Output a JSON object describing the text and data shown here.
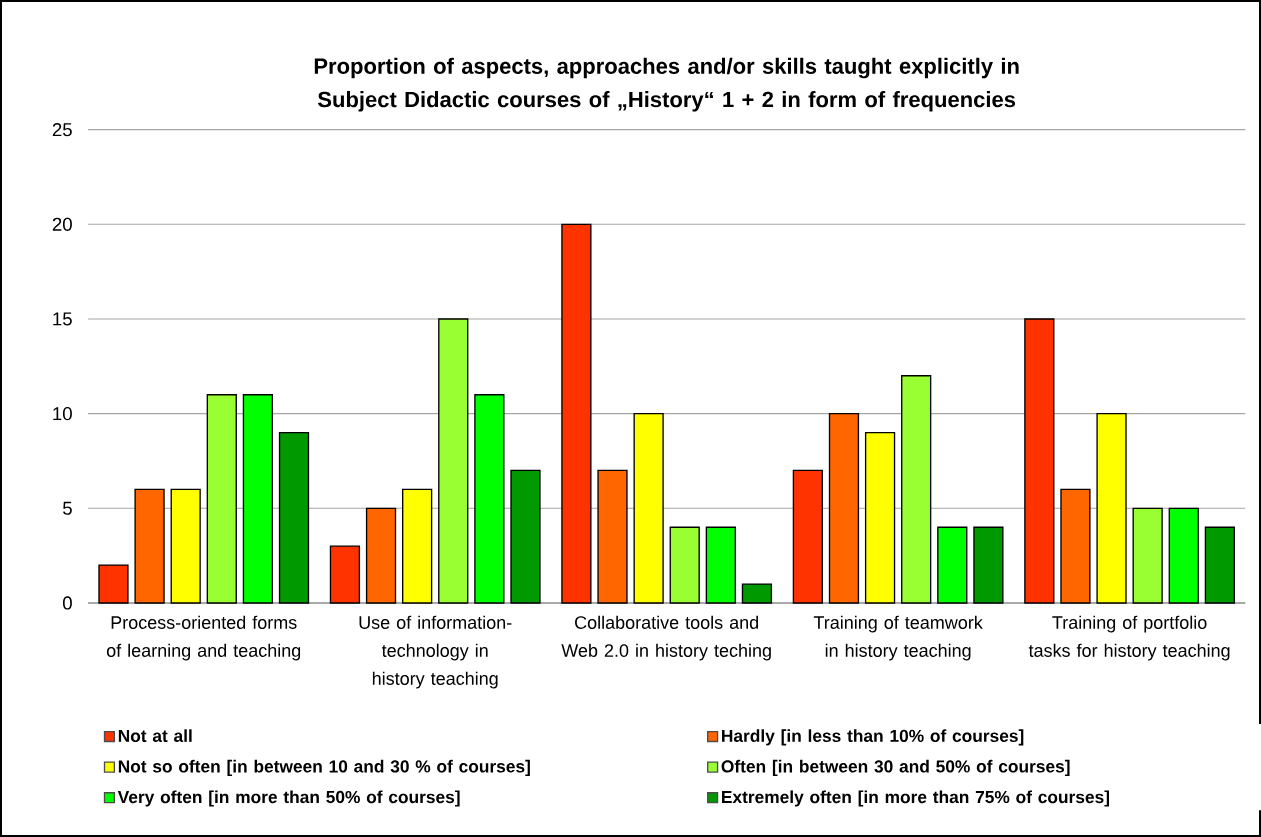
{
  "chart_data": {
    "type": "bar",
    "title": "Proportion of aspects, approaches and/or skills taught explicitly in Subject Didactic courses of „History“ 1 + 2 in form of frequencies",
    "categories": [
      "Process-oriented forms of learning and teaching",
      "Use of information-technology in history teaching",
      "Collaborative tools and Web 2.0 in history teching",
      "Training of teamwork in history teaching",
      "Training of portfolio tasks for history teaching"
    ],
    "series": [
      {
        "name": "Not at all",
        "color": "#ff3300",
        "values": [
          2,
          3,
          20,
          7,
          15
        ]
      },
      {
        "name": "Hardly [in less than 10% of courses]",
        "color": "#ff6600",
        "values": [
          6,
          5,
          7,
          10,
          6
        ]
      },
      {
        "name": "Not so often [in between 10 and 30 % of courses]",
        "color": "#ffff00",
        "values": [
          6,
          6,
          10,
          9,
          10
        ]
      },
      {
        "name": "Often [in between 30 and 50% of courses]",
        "color": "#99ff33",
        "values": [
          11,
          15,
          4,
          12,
          5
        ]
      },
      {
        "name": "Very often [in more than 50% of courses]",
        "color": "#00ff00",
        "values": [
          11,
          11,
          4,
          4,
          5
        ]
      },
      {
        "name": "Extremely often [in more than 75% of courses]",
        "color": "#009900",
        "values": [
          9,
          7,
          1,
          4,
          4
        ]
      }
    ],
    "ylim": [
      0,
      25
    ],
    "yticks": [
      0,
      5,
      10,
      15,
      20,
      25
    ],
    "grid": "y",
    "legend": "bottom"
  }
}
